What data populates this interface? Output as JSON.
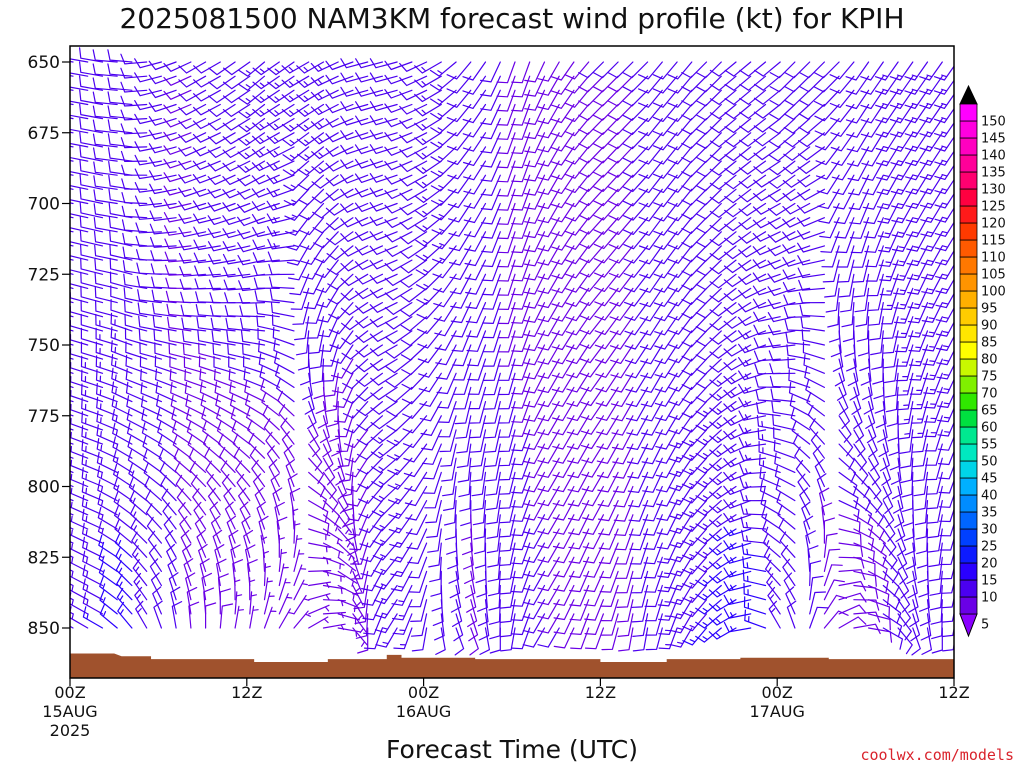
{
  "credit": "coolwx.com/models",
  "chart_data": {
    "type": "wind-barb-profile",
    "title": "2025081500 NAM3KM forecast wind profile (kt) for KPIH",
    "xlabel": "Forecast Time (UTC)",
    "ylabel": "",
    "y_axis": {
      "units": "hPa",
      "ticks": [
        650,
        675,
        700,
        725,
        750,
        775,
        800,
        825,
        850
      ],
      "range": [
        860,
        646
      ]
    },
    "x_axis": {
      "units": "forecast hour",
      "range": [
        0,
        60
      ],
      "ticks": [
        {
          "hour": 0,
          "lines": [
            "00Z",
            "15AUG",
            "2025"
          ]
        },
        {
          "hour": 12,
          "lines": [
            "12Z"
          ]
        },
        {
          "hour": 24,
          "lines": [
            "00Z",
            "16AUG"
          ]
        },
        {
          "hour": 36,
          "lines": [
            "12Z"
          ]
        },
        {
          "hour": 48,
          "lines": [
            "00Z",
            "17AUG"
          ]
        },
        {
          "hour": 60,
          "lines": [
            "12Z"
          ]
        }
      ]
    },
    "colorbar": {
      "levels": [
        5,
        10,
        15,
        20,
        25,
        30,
        35,
        40,
        45,
        50,
        55,
        60,
        65,
        70,
        75,
        80,
        85,
        90,
        95,
        100,
        105,
        110,
        115,
        120,
        125,
        130,
        135,
        140,
        145,
        150
      ],
      "colors": [
        "#6a00e6",
        "#4b00f0",
        "#2a00ff",
        "#0d1bff",
        "#0040ff",
        "#0066ff",
        "#008cff",
        "#00b0ff",
        "#00d4e8",
        "#00e8c0",
        "#00e890",
        "#00e040",
        "#30e800",
        "#80f000",
        "#c8f800",
        "#ffff00",
        "#ffe600",
        "#ffcc00",
        "#ffb000",
        "#ff9400",
        "#ff7800",
        "#ff5a00",
        "#ff3a00",
        "#ff1a1a",
        "#ff0040",
        "#ff0070",
        "#ff0099",
        "#ff00c0",
        "#ff00e0",
        "#ff00ff"
      ],
      "under_color": "#8a00ff",
      "over_color": "#000000"
    },
    "terrain": {
      "color": "#a0522d",
      "surface_pressure_hpa": [
        {
          "hour": 0,
          "p": 859
        },
        {
          "hour": 3,
          "p": 859
        },
        {
          "hour": 3.5,
          "p": 860
        },
        {
          "hour": 5.5,
          "p": 860
        },
        {
          "hour": 5.5,
          "p": 861
        },
        {
          "hour": 12.5,
          "p": 861
        },
        {
          "hour": 12.5,
          "p": 862
        },
        {
          "hour": 17.5,
          "p": 862
        },
        {
          "hour": 17.5,
          "p": 861
        },
        {
          "hour": 21.5,
          "p": 861
        },
        {
          "hour": 21.5,
          "p": 859.5
        },
        {
          "hour": 22.5,
          "p": 859.5
        },
        {
          "hour": 22.5,
          "p": 860.5
        },
        {
          "hour": 27.5,
          "p": 860.5
        },
        {
          "hour": 27.5,
          "p": 861
        },
        {
          "hour": 36,
          "p": 861
        },
        {
          "hour": 36,
          "p": 862
        },
        {
          "hour": 40.5,
          "p": 862
        },
        {
          "hour": 40.5,
          "p": 861
        },
        {
          "hour": 45.5,
          "p": 861
        },
        {
          "hour": 45.5,
          "p": 860.5
        },
        {
          "hour": 51.5,
          "p": 860.5
        },
        {
          "hour": 51.5,
          "p": 861
        },
        {
          "hour": 60,
          "p": 861
        }
      ]
    },
    "wind_field": {
      "description": "barbs every forecast hour from 650 to 850 hPa every 5 hPa where above ground",
      "hours": [
        0,
        1,
        2,
        3,
        4,
        5,
        6,
        7,
        8,
        9,
        10,
        11,
        12,
        13,
        14,
        15,
        16,
        17,
        18,
        19,
        20,
        21,
        22,
        23,
        24,
        25,
        26,
        27,
        28,
        29,
        30,
        31,
        32,
        33,
        34,
        35,
        36,
        37,
        38,
        39,
        40,
        41,
        42,
        43,
        44,
        45,
        46,
        47,
        48,
        49,
        50,
        51,
        52,
        53,
        54,
        55,
        56,
        57,
        58,
        59,
        60
      ],
      "upper_direction_deg": [
        280,
        280,
        280,
        275,
        275,
        265,
        255,
        250,
        245,
        240,
        240,
        235,
        235,
        230,
        235,
        235,
        240,
        240,
        245,
        250,
        255,
        255,
        255,
        250,
        245,
        240,
        230,
        220,
        215,
        205,
        200,
        200,
        205,
        210,
        215,
        220,
        225,
        225,
        225,
        225,
        220,
        220,
        220,
        225,
        225,
        230,
        230,
        230,
        230,
        225,
        225,
        225,
        225,
        220,
        215,
        215,
        215,
        215,
        215,
        215,
        215
      ],
      "upper_speed_kt": [
        12,
        12,
        11,
        11,
        11,
        10,
        10,
        10,
        10,
        11,
        11,
        12,
        12,
        13,
        13,
        14,
        14,
        13,
        13,
        12,
        12,
        12,
        12,
        12,
        12,
        13,
        13,
        12,
        11,
        10,
        9,
        8,
        8,
        8,
        9,
        9,
        10,
        10,
        10,
        10,
        11,
        11,
        11,
        10,
        10,
        10,
        10,
        11,
        11,
        11,
        12,
        12,
        12,
        12,
        12,
        12,
        13,
        13,
        13,
        13,
        13
      ],
      "lower_direction_deg": [
        300,
        300,
        300,
        310,
        320,
        330,
        340,
        350,
        355,
        0,
        5,
        10,
        10,
        20,
        30,
        40,
        60,
        80,
        100,
        140,
        180,
        200,
        210,
        200,
        190,
        170,
        160,
        160,
        170,
        180,
        190,
        200,
        210,
        210,
        205,
        200,
        200,
        195,
        190,
        190,
        195,
        200,
        210,
        220,
        230,
        240,
        260,
        290,
        330,
        340,
        20,
        40,
        60,
        80,
        100,
        120,
        140,
        160,
        170,
        180,
        190
      ],
      "lower_speed_kt": [
        14,
        14,
        15,
        16,
        16,
        14,
        12,
        10,
        9,
        8,
        8,
        7,
        7,
        6,
        6,
        5,
        5,
        5,
        5,
        6,
        8,
        11,
        13,
        13,
        12,
        11,
        10,
        9,
        10,
        11,
        12,
        12,
        11,
        10,
        9,
        8,
        8,
        8,
        9,
        10,
        11,
        13,
        14,
        15,
        16,
        17,
        17,
        16,
        14,
        12,
        10,
        9,
        9,
        9,
        9,
        10,
        11,
        12,
        12,
        12,
        12
      ]
    }
  }
}
